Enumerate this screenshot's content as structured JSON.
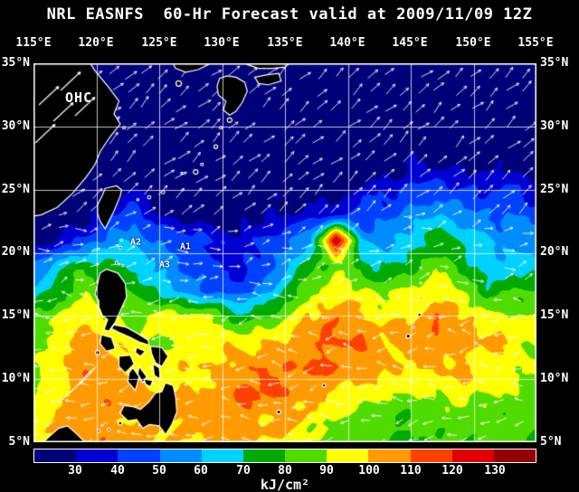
{
  "title": "NRL EASNFS  60-Hr Forecast valid at 2009/11/09 12Z",
  "axes": {
    "lon_labels": [
      "115°E",
      "120°E",
      "125°E",
      "130°E",
      "135°E",
      "140°E",
      "145°E",
      "150°E",
      "155°E"
    ],
    "lat_labels": [
      "35°N",
      "30°N",
      "25°N",
      "20°N",
      "15°N",
      "10°N",
      "5°N"
    ]
  },
  "annotations": [
    {
      "label": "OHC"
    },
    {
      "label": "A2"
    },
    {
      "label": "A1"
    },
    {
      "label": "A3"
    }
  ],
  "colorbar": {
    "tick_labels": [
      "30",
      "40",
      "50",
      "60",
      "70",
      "80",
      "90",
      "100",
      "110",
      "120",
      "130"
    ],
    "unit": "kJ/cm²",
    "colors": [
      "#000078",
      "#0000d2",
      "#0041ff",
      "#008cff",
      "#00d2ff",
      "#00aa00",
      "#50dc00",
      "#ffff00",
      "#ff9b00",
      "#ff4100",
      "#e00000",
      "#940000"
    ]
  },
  "chart_data": {
    "type": "heatmap",
    "title": "NRL EASNFS 60-Hr Forecast valid at 2009/11/09 12Z",
    "quantity": "Ocean Heat Content (OHC) forecast with surface current vectors",
    "unit": "kJ/cm²",
    "lon_range": [
      115,
      155
    ],
    "lat_range": [
      5,
      35
    ],
    "grid_interval_deg": 5,
    "value_bins": [
      30,
      40,
      50,
      60,
      70,
      80,
      90,
      100,
      110,
      120,
      130
    ],
    "lons": [
      115,
      117,
      119,
      121,
      123,
      125,
      127,
      129,
      131,
      133,
      135,
      137,
      139,
      141,
      143,
      145,
      147,
      149,
      151,
      153,
      155
    ],
    "lats": [
      35,
      33,
      31,
      29,
      27,
      25,
      23,
      21,
      19,
      17,
      15,
      13,
      11,
      9,
      7,
      5
    ],
    "values": [
      [
        12,
        12,
        12,
        12,
        12,
        12,
        12,
        12,
        12,
        12,
        12,
        12,
        12,
        12,
        12,
        12,
        12,
        12,
        12,
        12,
        12
      ],
      [
        12,
        12,
        12,
        12,
        12,
        12,
        12,
        12,
        12,
        12,
        12,
        12,
        12,
        12,
        12,
        12,
        14,
        14,
        14,
        12,
        12
      ],
      [
        12,
        12,
        12,
        12,
        14,
        14,
        12,
        12,
        12,
        12,
        12,
        12,
        12,
        14,
        14,
        16,
        18,
        18,
        16,
        16,
        14
      ],
      [
        12,
        12,
        12,
        14,
        16,
        16,
        14,
        14,
        14,
        14,
        14,
        14,
        16,
        16,
        18,
        20,
        22,
        22,
        20,
        18,
        18
      ],
      [
        12,
        12,
        12,
        14,
        18,
        18,
        16,
        16,
        16,
        16,
        16,
        18,
        20,
        22,
        26,
        30,
        32,
        30,
        28,
        26,
        24
      ],
      [
        12,
        12,
        14,
        22,
        28,
        22,
        18,
        18,
        20,
        22,
        24,
        26,
        28,
        32,
        36,
        42,
        46,
        42,
        38,
        40,
        34
      ],
      [
        12,
        14,
        22,
        38,
        46,
        30,
        24,
        24,
        26,
        30,
        32,
        36,
        40,
        44,
        48,
        56,
        62,
        56,
        50,
        52,
        46
      ],
      [
        22,
        32,
        42,
        56,
        60,
        50,
        44,
        38,
        36,
        42,
        50,
        56,
        130,
        62,
        58,
        66,
        76,
        70,
        60,
        56,
        52
      ],
      [
        55,
        65,
        75,
        72,
        70,
        58,
        46,
        40,
        38,
        44,
        58,
        74,
        84,
        76,
        70,
        78,
        86,
        78,
        62,
        70,
        66
      ],
      [
        66,
        78,
        88,
        86,
        80,
        68,
        58,
        48,
        45,
        52,
        72,
        86,
        94,
        90,
        86,
        92,
        96,
        88,
        72,
        80,
        78
      ],
      [
        85,
        92,
        96,
        92,
        88,
        95,
        95,
        90,
        75,
        80,
        90,
        98,
        106,
        102,
        96,
        100,
        106,
        100,
        94,
        92,
        88
      ],
      [
        84,
        96,
        108,
        98,
        92,
        90,
        95,
        98,
        95,
        96,
        102,
        108,
        112,
        108,
        102,
        104,
        110,
        104,
        100,
        96,
        92
      ],
      [
        86,
        98,
        110,
        102,
        96,
        94,
        96,
        100,
        102,
        106,
        110,
        112,
        110,
        104,
        100,
        98,
        102,
        100,
        96,
        94,
        90
      ],
      [
        88,
        98,
        108,
        104,
        100,
        98,
        100,
        104,
        108,
        110,
        108,
        104,
        100,
        96,
        92,
        90,
        95,
        96,
        92,
        90,
        88
      ],
      [
        90,
        100,
        110,
        106,
        102,
        100,
        102,
        104,
        108,
        104,
        100,
        96,
        90,
        86,
        82,
        80,
        86,
        88,
        86,
        84,
        82
      ],
      [
        92,
        102,
        108,
        104,
        100,
        98,
        100,
        102,
        104,
        100,
        95,
        90,
        86,
        82,
        80,
        78,
        82,
        84,
        84,
        82,
        80
      ]
    ]
  }
}
